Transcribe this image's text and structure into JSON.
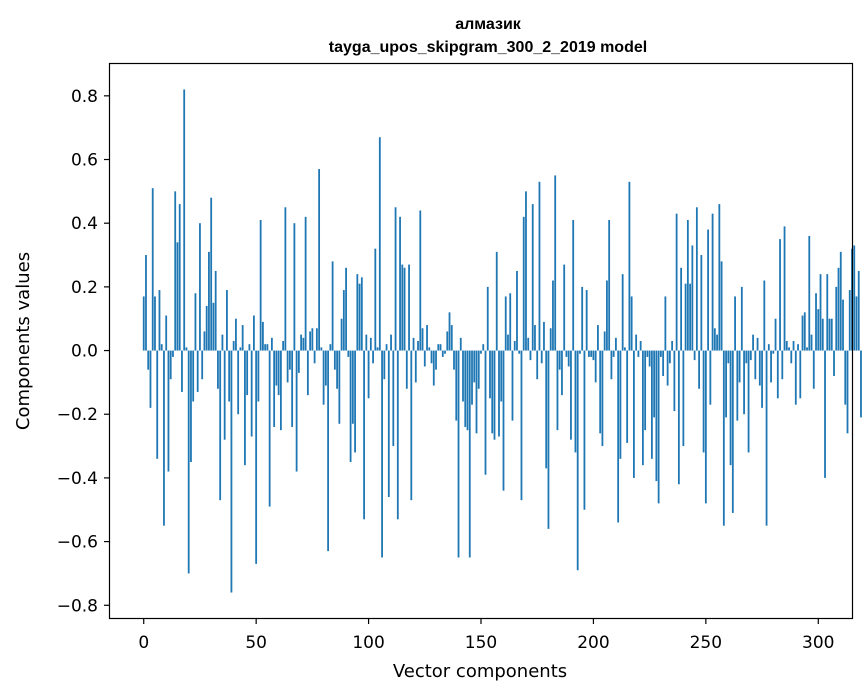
{
  "chart_data": {
    "type": "bar",
    "title": "алмазик",
    "subtitle": "tayga_upos_skipgram_300_2_2019 model",
    "xlabel": "Vector components",
    "ylabel": "Components values",
    "xlim": [
      -15,
      315
    ],
    "ylim": [
      -0.84,
      0.9
    ],
    "xticks": [
      0,
      50,
      100,
      150,
      200,
      250,
      300
    ],
    "yticks": [
      -0.8,
      -0.6,
      -0.4,
      -0.2,
      0.0,
      0.2,
      0.4,
      0.6,
      0.8
    ],
    "xtick_labels": [
      "0",
      "50",
      "100",
      "150",
      "200",
      "250",
      "300"
    ],
    "ytick_labels": [
      "−0.8",
      "−0.6",
      "−0.4",
      "−0.2",
      "0.0",
      "0.2",
      "0.4",
      "0.6",
      "0.8"
    ],
    "bar_color": "#1f77b4",
    "grid": false,
    "values": [
      0.17,
      0.3,
      -0.06,
      -0.18,
      0.51,
      0.17,
      -0.34,
      0.19,
      0.02,
      -0.55,
      0.11,
      -0.38,
      -0.09,
      -0.02,
      0.5,
      0.34,
      0.46,
      -0.13,
      0.82,
      0.01,
      -0.7,
      -0.35,
      -0.16,
      0.18,
      -0.13,
      0.4,
      -0.09,
      0.06,
      0.14,
      0.31,
      0.48,
      0.15,
      0.25,
      -0.12,
      -0.47,
      0.05,
      -0.28,
      0.19,
      -0.16,
      -0.76,
      0.03,
      0.1,
      -0.2,
      0.01,
      0.08,
      -0.36,
      -0.14,
      0.02,
      -0.27,
      0.11,
      -0.67,
      -0.16,
      0.41,
      0.09,
      0.02,
      0.02,
      -0.49,
      0.04,
      -0.24,
      -0.11,
      -0.14,
      -0.25,
      0.03,
      0.45,
      -0.1,
      -0.06,
      -0.24,
      0.4,
      -0.38,
      -0.07,
      0.05,
      0.04,
      0.42,
      -0.14,
      0.06,
      0.07,
      -0.04,
      0.07,
      0.57,
      0.01,
      -0.17,
      -0.11,
      -0.63,
      0.02,
      0.28,
      -0.06,
      -0.12,
      -0.23,
      0.1,
      0.19,
      0.26,
      -0.02,
      -0.35,
      -0.23,
      -0.32,
      0.24,
      0.21,
      0.23,
      -0.53,
      0.05,
      -0.15,
      0.04,
      -0.04,
      0.32,
      0.01,
      0.67,
      -0.65,
      -0.09,
      0.02,
      -0.46,
      0.05,
      -0.3,
      0.45,
      -0.53,
      0.42,
      0.27,
      0.26,
      -0.12,
      0.27,
      -0.47,
      0.04,
      -0.1,
      0.03,
      0.44,
      0.07,
      -0.05,
      0.08,
      0.01,
      -0.04,
      -0.11,
      -0.06,
      0.02,
      0.02,
      -0.02,
      -0.01,
      0.06,
      0.12,
      0.08,
      -0.06,
      -0.22,
      -0.65,
      0.04,
      -0.16,
      -0.24,
      -0.25,
      -0.65,
      -0.17,
      -0.1,
      -0.26,
      -0.12,
      -0.01,
      0.02,
      -0.39,
      0.2,
      -0.15,
      -0.26,
      -0.28,
      0.31,
      -0.27,
      -0.16,
      -0.44,
      0.17,
      0.05,
      0.18,
      -0.22,
      0.03,
      0.25,
      -0.01,
      -0.47,
      0.42,
      0.5,
      0.04,
      -0.03,
      0.46,
      0.08,
      -0.09,
      0.53,
      -0.04,
      0.09,
      -0.37,
      -0.56,
      0.07,
      0.22,
      0.55,
      -0.25,
      -0.06,
      -0.14,
      0.27,
      -0.02,
      -0.05,
      -0.28,
      0.41,
      -0.32,
      -0.69,
      -0.01,
      0.2,
      -0.5,
      0.19,
      -0.02,
      -0.02,
      -0.03,
      -0.1,
      0.08,
      -0.26,
      -0.3,
      0.06,
      0.22,
      0.41,
      -0.09,
      -0.02,
      0.04,
      -0.54,
      -0.34,
      0.24,
      0.01,
      -0.29,
      0.53,
      0.17,
      -0.4,
      0.05,
      -0.02,
      0.03,
      -0.36,
      -0.25,
      -0.02,
      -0.05,
      -0.34,
      -0.21,
      -0.41,
      -0.48,
      -0.02,
      -0.08,
      0.17,
      -0.11,
      -0.04,
      0.03,
      -0.19,
      0.43,
      -0.42,
      0.26,
      -0.3,
      0.21,
      0.41,
      0.21,
      0.33,
      -0.03,
      0.45,
      -0.12,
      0.3,
      -0.32,
      -0.48,
      0.38,
      -0.17,
      0.43,
      0.07,
      0.05,
      0.46,
      0.28,
      -0.55,
      -0.21,
      -0.04,
      -0.36,
      -0.51,
      0.17,
      -0.22,
      -0.1,
      0.2,
      -0.2,
      -0.04,
      -0.32,
      -0.03,
      0.05,
      -0.09,
      0.04,
      -0.11,
      -0.18,
      0.22,
      -0.55,
      0.02,
      -0.1,
      -0.01,
      0.1,
      -0.15,
      0.35,
      -0.09,
      0.39,
      0.03,
      0.01,
      -0.04,
      0.03,
      -0.17,
      0.02,
      -0.15,
      0.11,
      0.12,
      0.01,
      0.36,
      0.05,
      -0.12,
      0.18,
      0.13,
      0.24,
      0.1,
      -0.4,
      0.24,
      0.1,
      0.1,
      -0.08,
      0.2,
      0.26,
      0.31,
      0.16,
      -0.17,
      -0.26,
      0.19,
      0.32,
      0.33,
      0.17,
      0.25,
      -0.21
    ]
  }
}
